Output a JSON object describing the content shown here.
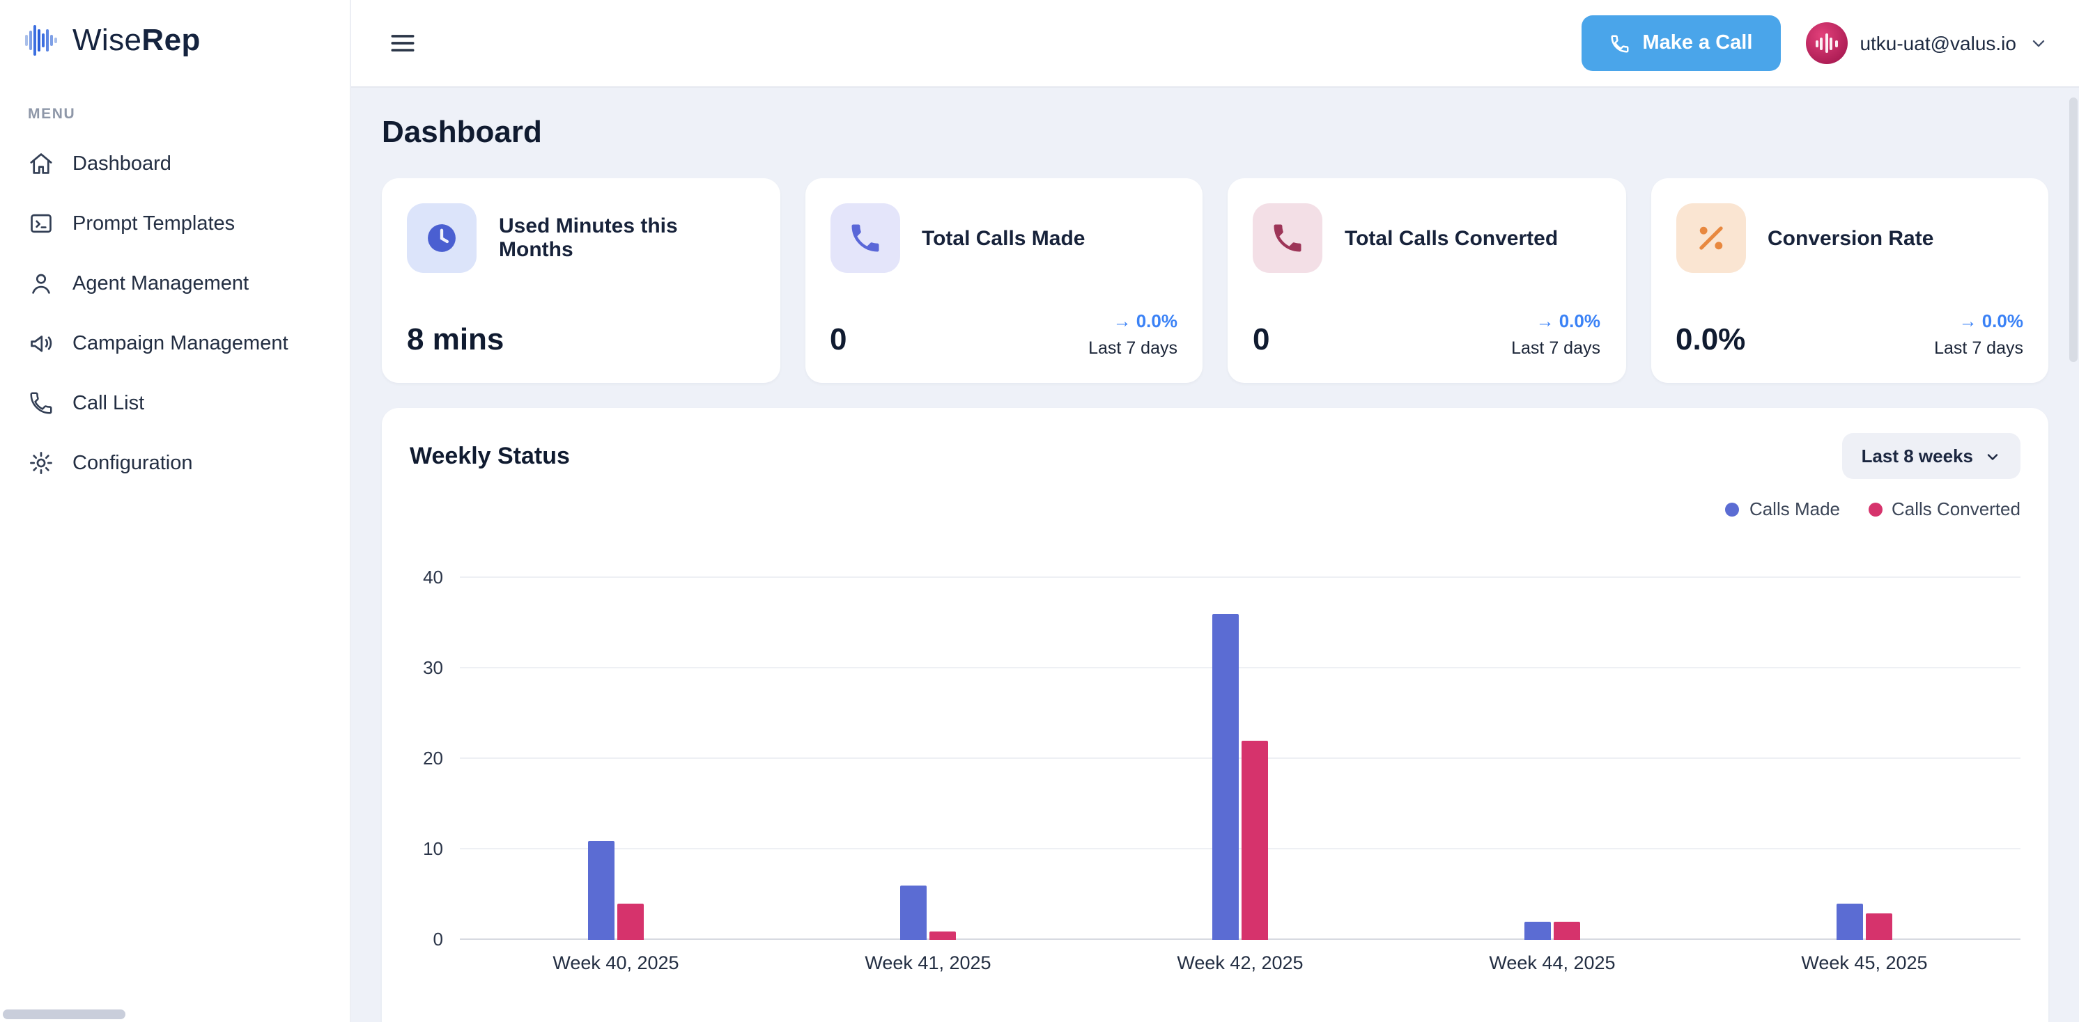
{
  "brand": {
    "name_regular": "Wise",
    "name_bold": "Rep"
  },
  "sidebar": {
    "menu_label": "MENU",
    "items": [
      {
        "label": "Dashboard",
        "icon": "home-icon"
      },
      {
        "label": "Prompt Templates",
        "icon": "template-icon"
      },
      {
        "label": "Agent Management",
        "icon": "user-icon"
      },
      {
        "label": "Campaign Management",
        "icon": "megaphone-icon"
      },
      {
        "label": "Call List",
        "icon": "phone-icon"
      },
      {
        "label": "Configuration",
        "icon": "gear-icon"
      }
    ]
  },
  "topbar": {
    "make_call_label": "Make a Call",
    "user_email": "utku-uat@valus.io",
    "accent_color": "#4aa5ea"
  },
  "page_title": "Dashboard",
  "stats": [
    {
      "title": "Used Minutes this Months",
      "value": "8 mins",
      "icon": "clock-icon",
      "icon_bg": "#dce4fa",
      "icon_color": "#4a5fd1"
    },
    {
      "title": "Total Calls Made",
      "value": "0",
      "icon": "phone-icon",
      "icon_bg": "#e4e5fa",
      "icon_color": "#5a67d8",
      "trend": "→ 0.0%",
      "trend_caption": "Last 7 days",
      "trend_color": "#3b82f6"
    },
    {
      "title": "Total Calls Converted",
      "value": "0",
      "icon": "phone-icon",
      "icon_bg": "#f3dfe6",
      "icon_color": "#9d3558",
      "trend": "→ 0.0%",
      "trend_caption": "Last 7 days",
      "trend_color": "#3b82f6"
    },
    {
      "title": "Conversion Rate",
      "value": "0.0%",
      "icon": "percent-icon",
      "icon_bg": "#fae5d2",
      "icon_color": "#e8883f",
      "trend": "→ 0.0%",
      "trend_caption": "Last 7 days",
      "trend_color": "#3b82f6"
    }
  ],
  "weekly": {
    "title": "Weekly Status",
    "range_label": "Last 8 weeks"
  },
  "chart_data": {
    "type": "bar",
    "title": "Weekly Status",
    "categories": [
      "Week 40, 2025",
      "Week 41, 2025",
      "Week 42, 2025",
      "Week 44, 2025",
      "Week 45, 2025"
    ],
    "series": [
      {
        "name": "Calls Made",
        "color": "#5b6cd3",
        "values": [
          11,
          6,
          36,
          2,
          4
        ]
      },
      {
        "name": "Calls Converted",
        "color": "#d6336c",
        "values": [
          4,
          1,
          22,
          2,
          3
        ]
      }
    ],
    "xlabel": "",
    "ylabel": "",
    "ylim": [
      0,
      40
    ],
    "yticks": [
      0,
      10,
      20,
      30,
      40
    ],
    "grid": true,
    "legend_position": "top-right"
  }
}
